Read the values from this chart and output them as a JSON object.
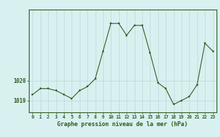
{
  "hours": [
    0,
    1,
    2,
    3,
    4,
    5,
    6,
    7,
    8,
    9,
    10,
    11,
    12,
    13,
    14,
    15,
    16,
    17,
    18,
    19,
    20,
    21,
    22,
    23
  ],
  "pressure": [
    1019.3,
    1019.6,
    1019.6,
    1019.5,
    1019.3,
    1019.1,
    1019.5,
    1019.7,
    1020.1,
    1021.5,
    1022.9,
    1022.9,
    1022.3,
    1022.8,
    1022.8,
    1021.4,
    1019.9,
    1019.6,
    1018.8,
    1019.0,
    1019.2,
    1019.8,
    1021.9,
    1021.5
  ],
  "line_color": "#2d5a1b",
  "marker_color": "#2d5a1b",
  "bg_color": "#d8f0f0",
  "grid_color": "#b8d8d8",
  "axis_color": "#2d5a1b",
  "text_color": "#2d5a1b",
  "xlabel": "Graphe pression niveau de la mer (hPa)",
  "ylim": [
    1018.4,
    1023.6
  ],
  "xlim": [
    -0.5,
    23.5
  ],
  "figsize": [
    3.2,
    2.0
  ],
  "dpi": 100
}
